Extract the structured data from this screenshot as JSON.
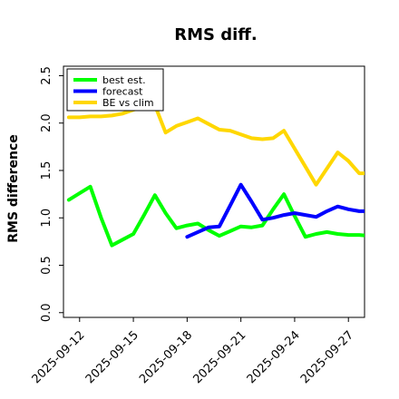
{
  "chart_data": {
    "type": "line",
    "title": "RMS diff.",
    "ylabel": "RMS difference",
    "xlabel": "",
    "ylim": [
      -0.05,
      2.6
    ],
    "xlim": [
      -1.5,
      26.5
    ],
    "grid": false,
    "legend_placement": "top-left",
    "y_ticks": [
      0.0,
      0.5,
      1.0,
      1.5,
      2.0,
      2.5
    ],
    "y_tick_labels": [
      "0.0",
      "0.5",
      "1.0",
      "1.5",
      "2.0",
      "2.5"
    ],
    "x_ticks": [
      0,
      5,
      10,
      15,
      20,
      25
    ],
    "x_tick_labels": [
      "2025-09-12",
      "2025-09-15",
      "2025-09-18",
      "2025-09-21",
      "2025-09-24",
      "2025-09-27"
    ],
    "highlight_tick_label": "2025-09-18",
    "highlight_color": "#228B22",
    "series": [
      {
        "name": "best est.",
        "color": "#00ff00",
        "x": [
          -1,
          0,
          1,
          2,
          3,
          4,
          5,
          6,
          7,
          8,
          9,
          10,
          11,
          12,
          13,
          14,
          15,
          16,
          17,
          18,
          19,
          20,
          21,
          22,
          23,
          24,
          25,
          26,
          27
        ],
        "y": [
          1.19,
          1.26,
          1.33,
          1.0,
          0.71,
          0.77,
          0.83,
          1.03,
          1.24,
          1.05,
          0.89,
          0.92,
          0.94,
          0.87,
          0.81,
          0.86,
          0.91,
          0.9,
          0.92,
          1.09,
          1.25,
          1.02,
          0.8,
          0.83,
          0.85,
          0.83,
          0.82,
          0.82,
          0.81
        ]
      },
      {
        "name": "forecast",
        "color": "#0000ff",
        "x": [
          10,
          11,
          12,
          13,
          14,
          15,
          16,
          17,
          18,
          19,
          20,
          21,
          22,
          23,
          24,
          25,
          26,
          27
        ],
        "y": [
          0.8,
          0.85,
          0.9,
          0.91,
          1.13,
          1.35,
          1.17,
          0.98,
          1.0,
          1.03,
          1.05,
          1.03,
          1.01,
          1.07,
          1.12,
          1.09,
          1.07,
          1.07
        ]
      },
      {
        "name": "BE vs clim",
        "color": "#ffd700",
        "x": [
          -1,
          0,
          1,
          2,
          3,
          4,
          5,
          6,
          7,
          8,
          9,
          10,
          11,
          12,
          13,
          14,
          15,
          16,
          17,
          18,
          19,
          20,
          21,
          22,
          23,
          24,
          25,
          26,
          27
        ],
        "y": [
          2.06,
          2.06,
          2.07,
          2.07,
          2.08,
          2.1,
          2.14,
          2.17,
          2.19,
          1.9,
          1.97,
          2.01,
          2.05,
          1.99,
          1.93,
          1.92,
          1.88,
          1.84,
          1.83,
          1.84,
          1.92,
          1.73,
          1.54,
          1.35,
          1.52,
          1.69,
          1.6,
          1.47,
          1.47
        ]
      }
    ]
  }
}
